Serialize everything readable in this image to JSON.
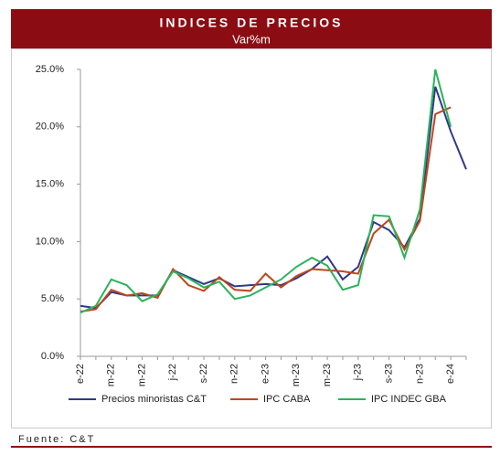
{
  "chart_data": {
    "type": "line",
    "title": "INDICES DE PRECIOS",
    "subtitle": "Var%m",
    "source": "Fuente: C&T",
    "categories": [
      "e-22",
      null,
      "m-22",
      null,
      "m-22",
      null,
      "j-22",
      null,
      "s-22",
      null,
      "n-22",
      null,
      "e-23",
      null,
      "m-23",
      null,
      "m-23",
      null,
      "j-23",
      null,
      "s-23",
      null,
      "n-23",
      null,
      "e-24",
      null
    ],
    "series": [
      {
        "name": "Precios minoristas C&T",
        "color": "#2e3a87",
        "values": [
          4.4,
          4.2,
          5.6,
          5.3,
          5.3,
          5.3,
          7.5,
          6.9,
          6.3,
          6.8,
          6.1,
          6.2,
          6.3,
          6.2,
          6.8,
          7.6,
          8.7,
          6.7,
          7.8,
          11.7,
          11.0,
          9.5,
          12.0,
          23.5,
          19.6,
          16.3
        ]
      },
      {
        "name": "IPC CABA",
        "color": "#c0451c",
        "values": [
          3.9,
          4.1,
          5.8,
          5.3,
          5.5,
          5.1,
          7.6,
          6.2,
          5.7,
          6.9,
          5.8,
          5.7,
          7.2,
          6.0,
          7.0,
          7.6,
          7.5,
          7.4,
          7.2,
          10.7,
          11.9,
          9.3,
          11.8,
          21.1,
          21.7,
          null
        ]
      },
      {
        "name": "IPC INDEC GBA",
        "color": "#2bb35a",
        "values": [
          3.8,
          4.4,
          6.7,
          6.2,
          4.8,
          5.4,
          7.4,
          6.8,
          6.0,
          6.5,
          5.0,
          5.3,
          6.0,
          6.7,
          7.8,
          8.6,
          7.9,
          5.8,
          6.2,
          12.3,
          12.2,
          8.6,
          12.8,
          25.0,
          20.0,
          null
        ]
      }
    ],
    "ylim": [
      0,
      25
    ],
    "yticks": [
      {
        "value": 0,
        "label": "0.0%"
      },
      {
        "value": 5,
        "label": "5.0%"
      },
      {
        "value": 10,
        "label": "10.0%"
      },
      {
        "value": 15,
        "label": "15.0%"
      },
      {
        "value": 20,
        "label": "20.0%"
      },
      {
        "value": 25,
        "label": "25.0%"
      }
    ],
    "grid": false,
    "legend": "bottom"
  }
}
